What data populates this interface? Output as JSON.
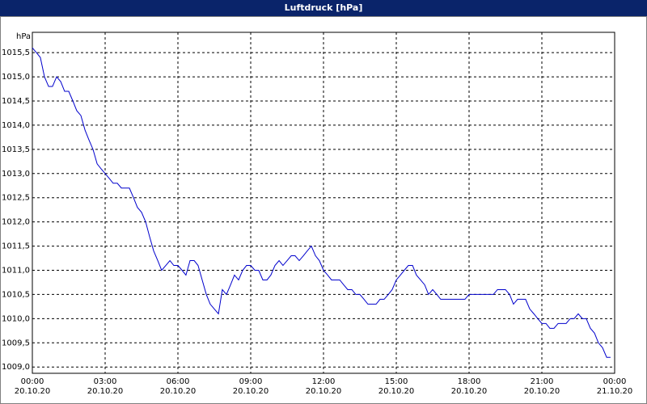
{
  "chart_data": {
    "type": "line",
    "title": "Luftdruck [hPa]",
    "y_label": "hPa",
    "xlim": [
      0,
      24
    ],
    "ylim": [
      1008.87,
      1015.92
    ],
    "xticks": [
      {
        "value": 0,
        "label": "00:00\n20.10.20"
      },
      {
        "value": 3,
        "label": "03:00\n20.10.20"
      },
      {
        "value": 6,
        "label": "06:00\n20.10.20"
      },
      {
        "value": 9,
        "label": "09:00\n20.10.20"
      },
      {
        "value": 12,
        "label": "12:00\n20.10.20"
      },
      {
        "value": 15,
        "label": "15:00\n20.10.20"
      },
      {
        "value": 18,
        "label": "18:00\n20.10.20"
      },
      {
        "value": 21,
        "label": "21:00\n20.10.20"
      },
      {
        "value": 24,
        "label": "00:00\n21.10.20"
      }
    ],
    "yticks": [
      {
        "value": 1009.0,
        "label": "1009,0"
      },
      {
        "value": 1009.5,
        "label": "1009,5"
      },
      {
        "value": 1010.0,
        "label": "1010,0"
      },
      {
        "value": 1010.5,
        "label": "1010,5"
      },
      {
        "value": 1011.0,
        "label": "1011,0"
      },
      {
        "value": 1011.5,
        "label": "1011,5"
      },
      {
        "value": 1012.0,
        "label": "1012,0"
      },
      {
        "value": 1012.5,
        "label": "1012,5"
      },
      {
        "value": 1013.0,
        "label": "1013,0"
      },
      {
        "value": 1013.5,
        "label": "1013,5"
      },
      {
        "value": 1014.0,
        "label": "1014,0"
      },
      {
        "value": 1014.5,
        "label": "1014,5"
      },
      {
        "value": 1015.0,
        "label": "1015,0"
      },
      {
        "value": 1015.5,
        "label": "1015,5"
      }
    ],
    "grid": true,
    "x": [
      0,
      0.17,
      0.33,
      0.5,
      0.67,
      0.83,
      1,
      1.17,
      1.33,
      1.5,
      1.67,
      1.83,
      2,
      2.17,
      2.33,
      2.5,
      2.67,
      2.83,
      3,
      3.17,
      3.33,
      3.5,
      3.67,
      3.83,
      4,
      4.17,
      4.33,
      4.5,
      4.67,
      4.83,
      5,
      5.17,
      5.33,
      5.5,
      5.67,
      5.83,
      6,
      6.17,
      6.33,
      6.5,
      6.67,
      6.83,
      7,
      7.17,
      7.33,
      7.5,
      7.67,
      7.83,
      8,
      8.17,
      8.33,
      8.5,
      8.67,
      8.83,
      9,
      9.17,
      9.33,
      9.5,
      9.67,
      9.83,
      10,
      10.17,
      10.33,
      10.5,
      10.67,
      10.83,
      11,
      11.17,
      11.33,
      11.5,
      11.67,
      11.83,
      12,
      12.17,
      12.33,
      12.5,
      12.67,
      12.83,
      13,
      13.17,
      13.33,
      13.5,
      13.67,
      13.83,
      14,
      14.17,
      14.33,
      14.5,
      14.67,
      14.83,
      15,
      15.17,
      15.33,
      15.5,
      15.67,
      15.83,
      16,
      16.17,
      16.33,
      16.5,
      16.67,
      16.83,
      17,
      17.17,
      17.33,
      17.5,
      17.67,
      17.83,
      18,
      18.17,
      18.33,
      18.5,
      18.67,
      18.83,
      19,
      19.17,
      19.33,
      19.5,
      19.67,
      19.83,
      20,
      20.17,
      20.33,
      20.5,
      20.67,
      20.83,
      21,
      21.17,
      21.33,
      21.5,
      21.67,
      21.83,
      22,
      22.17,
      22.33,
      22.5,
      22.67,
      22.83,
      23,
      23.17,
      23.33,
      23.5,
      23.67,
      23.83
    ],
    "series": [
      {
        "color": "#0000cc",
        "values": [
          1015.6,
          1015.5,
          1015.4,
          1015.0,
          1014.8,
          1014.8,
          1015.0,
          1014.9,
          1014.7,
          1014.7,
          1014.5,
          1014.3,
          1014.2,
          1013.9,
          1013.7,
          1013.5,
          1013.2,
          1013.1,
          1013.0,
          1012.9,
          1012.8,
          1012.8,
          1012.7,
          1012.7,
          1012.7,
          1012.5,
          1012.3,
          1012.2,
          1012.0,
          1011.7,
          1011.4,
          1011.2,
          1011.0,
          1011.1,
          1011.2,
          1011.1,
          1011.1,
          1011.0,
          1010.9,
          1011.2,
          1011.2,
          1011.1,
          1010.8,
          1010.5,
          1010.3,
          1010.2,
          1010.1,
          1010.6,
          1010.5,
          1010.7,
          1010.9,
          1010.8,
          1011.0,
          1011.1,
          1011.1,
          1011.0,
          1011.0,
          1010.8,
          1010.8,
          1010.9,
          1011.1,
          1011.2,
          1011.1,
          1011.2,
          1011.3,
          1011.3,
          1011.2,
          1011.3,
          1011.4,
          1011.5,
          1011.3,
          1011.2,
          1011.0,
          1010.9,
          1010.8,
          1010.8,
          1010.8,
          1010.7,
          1010.6,
          1010.6,
          1010.5,
          1010.5,
          1010.4,
          1010.3,
          1010.3,
          1010.3,
          1010.4,
          1010.4,
          1010.5,
          1010.6,
          1010.8,
          1010.9,
          1011.0,
          1011.1,
          1011.1,
          1010.9,
          1010.8,
          1010.7,
          1010.5,
          1010.6,
          1010.5,
          1010.4,
          1010.4,
          1010.4,
          1010.4,
          1010.4,
          1010.4,
          1010.4,
          1010.5,
          1010.5,
          1010.5,
          1010.5,
          1010.5,
          1010.5,
          1010.5,
          1010.6,
          1010.6,
          1010.6,
          1010.5,
          1010.3,
          1010.4,
          1010.4,
          1010.4,
          1010.2,
          1010.1,
          1010.0,
          1009.9,
          1009.9,
          1009.8,
          1009.8,
          1009.9,
          1009.9,
          1009.9,
          1010.0,
          1010.0,
          1010.1,
          1010.0,
          1010.0,
          1009.8,
          1009.7,
          1009.5,
          1009.4,
          1009.2,
          1009.2
        ]
      }
    ]
  }
}
